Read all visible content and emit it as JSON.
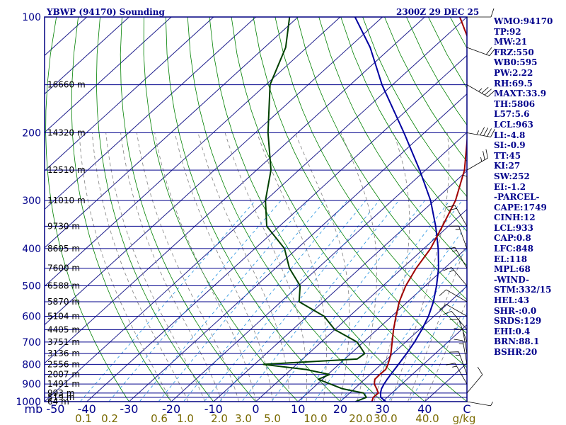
{
  "header": {
    "station": "YBWP (94170) Sounding",
    "valid": "2300Z 29 DEC 25"
  },
  "params": [
    "WMO:94170",
    "TP:92",
    "MW:21",
    "FRZ:550",
    "WB0:595",
    "PW:2.22",
    "RH:69.5",
    "MAXT:33.9",
    "TH:5806",
    "L57:5.6",
    "LCL:963",
    "LI:-4.8",
    "SI:-0.9",
    "TT:45",
    "KI:27",
    "SW:252",
    "EI:-1.2",
    "-PARCEL-",
    "CAPE:1749",
    "CINH:12",
    "LCL:933",
    "CAP:0.8",
    "LFC:848",
    "EL:118",
    "MPL:68",
    "-WIND-",
    "STM:332/15",
    "HEL:43",
    "SHR-:0.0",
    "SRDS:129",
    "EHI:0.4",
    "BRN:88.1",
    "BSHR:20"
  ],
  "chart_data": {
    "type": "line",
    "subtype": "skew-t log-p sounding",
    "y_axis": {
      "scale": "log",
      "range": [
        1000,
        100
      ],
      "unit": "mb",
      "ticks": [
        100,
        200,
        300,
        400,
        500,
        600,
        700,
        800,
        900,
        1000
      ]
    },
    "x_axis": {
      "range": [
        -50,
        50
      ],
      "ticks": [
        -50,
        -40,
        -30,
        -20,
        -10,
        0,
        10,
        20,
        30,
        40,
        50
      ],
      "tick_labels": [
        "mb -50",
        "-40",
        "-30",
        "-20",
        "-10",
        "0",
        "10",
        "20",
        "30",
        "40",
        "C"
      ]
    },
    "mixing_ratio_labels": [
      "0.1",
      "0.2",
      "0.6",
      "1.0",
      "2.0",
      "3.0",
      "5.0",
      "10.0",
      "20.0",
      "30.0",
      "40.0",
      "g/kg"
    ],
    "heights": [
      {
        "p": 1000,
        "h": "64 m"
      },
      {
        "p": 975,
        "h": "519 m"
      },
      {
        "p": 950,
        "h": "993 m"
      },
      {
        "p": 900,
        "h": "1491 m"
      },
      {
        "p": 850,
        "h": "2007 m"
      },
      {
        "p": 800,
        "h": "2556 m"
      },
      {
        "p": 750,
        "h": "3136 m"
      },
      {
        "p": 700,
        "h": "3751 m"
      },
      {
        "p": 650,
        "h": "4405 m"
      },
      {
        "p": 600,
        "h": "5104 m"
      },
      {
        "p": 550,
        "h": "5870 m"
      },
      {
        "p": 500,
        "h": "6588 m"
      },
      {
        "p": 450,
        "h": "7600 m"
      },
      {
        "p": 400,
        "h": "8605 m"
      },
      {
        "p": 350,
        "h": "9730 m"
      },
      {
        "p": 300,
        "h": "11010 m"
      },
      {
        "p": 250,
        "h": "12510 m"
      },
      {
        "p": 200,
        "h": "14320 m"
      },
      {
        "p": 150,
        "h": "16660 m"
      }
    ],
    "series": [
      {
        "role": "temperature",
        "color": "#a00000",
        "points": [
          [
            1000,
            27.5
          ],
          [
            975,
            26.7
          ],
          [
            950,
            26.8
          ],
          [
            925,
            25.2
          ],
          [
            900,
            23.5
          ],
          [
            875,
            22.4
          ],
          [
            850,
            22.3
          ],
          [
            825,
            22.4
          ],
          [
            800,
            21.6
          ],
          [
            775,
            20.6
          ],
          [
            750,
            19.5
          ],
          [
            700,
            16.8
          ],
          [
            650,
            13.9
          ],
          [
            600,
            11.0
          ],
          [
            550,
            8.0
          ],
          [
            500,
            5.4
          ],
          [
            450,
            3.3
          ],
          [
            400,
            1.6
          ],
          [
            350,
            -1.4
          ],
          [
            300,
            -5.0
          ],
          [
            250,
            -10.8
          ],
          [
            200,
            -19.7
          ],
          [
            150,
            -31.0
          ],
          [
            120,
            -41.0
          ],
          [
            100,
            -51.7
          ]
        ]
      },
      {
        "role": "dewpoint",
        "color": "#004000",
        "points": [
          [
            1000,
            23.6
          ],
          [
            975,
            25.1
          ],
          [
            950,
            23.3
          ],
          [
            925,
            17.0
          ],
          [
            900,
            13.1
          ],
          [
            875,
            9.0
          ],
          [
            850,
            10.4
          ],
          [
            825,
            3.5
          ],
          [
            800,
            -7.9
          ],
          [
            775,
            12.9
          ],
          [
            750,
            13.3
          ],
          [
            700,
            8.5
          ],
          [
            650,
            0.0
          ],
          [
            600,
            -6.0
          ],
          [
            550,
            -15.7
          ],
          [
            500,
            -19.6
          ],
          [
            450,
            -26.7
          ],
          [
            400,
            -33.0
          ],
          [
            350,
            -43.0
          ],
          [
            300,
            -50.0
          ],
          [
            250,
            -56.6
          ],
          [
            200,
            -67.0
          ],
          [
            150,
            -79.0
          ],
          [
            120,
            -85.0
          ],
          [
            100,
            -92.0
          ]
        ]
      },
      {
        "role": "parcel",
        "color": "#0000a0",
        "points": [
          [
            1000,
            30.8
          ],
          [
            975,
            28.5
          ],
          [
            950,
            27.3
          ],
          [
            925,
            26.4
          ],
          [
            900,
            25.8
          ],
          [
            875,
            25.3
          ],
          [
            850,
            24.9
          ],
          [
            800,
            24.1
          ],
          [
            750,
            23.2
          ],
          [
            700,
            22.1
          ],
          [
            650,
            20.6
          ],
          [
            600,
            18.7
          ],
          [
            550,
            16.1
          ],
          [
            500,
            12.7
          ],
          [
            450,
            8.6
          ],
          [
            400,
            3.4
          ],
          [
            350,
            -3.0
          ],
          [
            300,
            -10.9
          ],
          [
            250,
            -21.4
          ],
          [
            200,
            -34.8
          ],
          [
            150,
            -52.5
          ],
          [
            120,
            -65.0
          ],
          [
            100,
            -76.5
          ]
        ]
      }
    ],
    "wind_barbs": [
      {
        "p": 1000,
        "dir": 100,
        "spd": 5
      },
      {
        "p": 950,
        "dir": 40,
        "spd": 10
      },
      {
        "p": 900,
        "dir": 330,
        "spd": 15
      },
      {
        "p": 850,
        "dir": 340,
        "spd": 15
      },
      {
        "p": 800,
        "dir": 350,
        "spd": 15
      },
      {
        "p": 750,
        "dir": 350,
        "spd": 10
      },
      {
        "p": 700,
        "dir": 340,
        "spd": 10
      },
      {
        "p": 650,
        "dir": 320,
        "spd": 10
      },
      {
        "p": 600,
        "dir": 300,
        "spd": 10
      },
      {
        "p": 550,
        "dir": 300,
        "spd": 10
      },
      {
        "p": 500,
        "dir": 320,
        "spd": 15
      },
      {
        "p": 450,
        "dir": 330,
        "spd": 15
      },
      {
        "p": 400,
        "dir": 340,
        "spd": 15
      },
      {
        "p": 350,
        "dir": 330,
        "spd": 20
      },
      {
        "p": 300,
        "dir": 0,
        "spd": 5
      },
      {
        "p": 250,
        "dir": 60,
        "spd": 25
      },
      {
        "p": 200,
        "dir": 100,
        "spd": 45
      },
      {
        "p": 150,
        "dir": 120,
        "spd": 35
      },
      {
        "p": 120,
        "dir": 110,
        "spd": 20
      },
      {
        "p": 100,
        "dir": 90,
        "spd": 10
      }
    ],
    "colors": {
      "frame": "#000080",
      "isobar": "#00008b",
      "isotherm": "#1e1e8c",
      "dry_adiabat": "#008000",
      "moist_adiabat": "#808080",
      "mixing_ratio": "#2090e0",
      "wind_barb": "#000000"
    }
  }
}
